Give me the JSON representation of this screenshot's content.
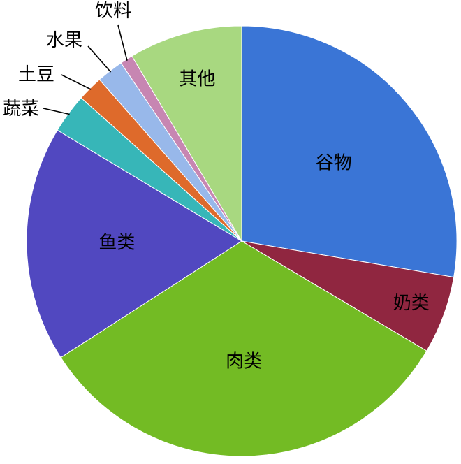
{
  "chart_data": {
    "type": "pie",
    "title": "",
    "slices": [
      {
        "label": "谷物",
        "value": 28.9,
        "color": "#3A75D6"
      },
      {
        "label": "奶类",
        "value": 6.1,
        "color": "#902640"
      },
      {
        "label": "肉类",
        "value": 33.8,
        "color": "#73BB24"
      },
      {
        "label": "鱼类",
        "value": 18.5,
        "color": "#5148C0"
      },
      {
        "label": "蔬菜",
        "value": 3.1,
        "color": "#37B6B8"
      },
      {
        "label": "土豆",
        "value": 2.0,
        "color": "#DE6A2B"
      },
      {
        "label": "水果",
        "value": 2.1,
        "color": "#98B8EA"
      },
      {
        "label": "饮料",
        "value": 1.0,
        "color": "#C786B2"
      },
      {
        "label": "其他",
        "value": 8.9,
        "color": "#A8D880"
      }
    ],
    "start": "12 o'clock",
    "direction": "clockwise",
    "legend": "none"
  }
}
